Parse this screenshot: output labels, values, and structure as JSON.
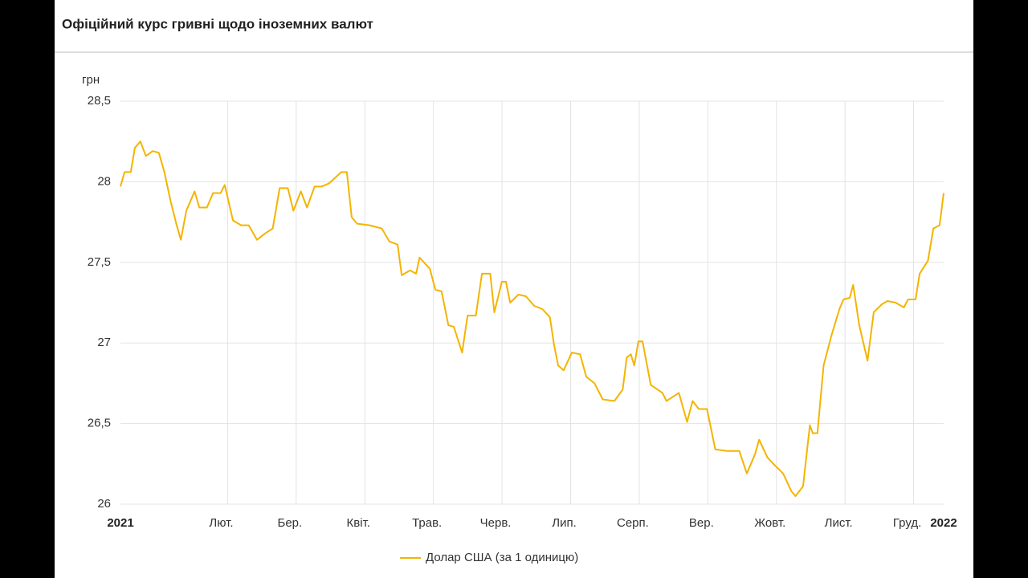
{
  "chart_data": {
    "type": "line",
    "title": "Офіційний курс гривні щодо іноземних валют",
    "y_label": "грн",
    "xlim": [
      0,
      12
    ],
    "xticks": [
      {
        "value": 0,
        "label": "2021"
      },
      {
        "value": 1,
        "label": "Лют."
      },
      {
        "value": 2,
        "label": "Бер."
      },
      {
        "value": 3,
        "label": "Квіт."
      },
      {
        "value": 4,
        "label": "Трав."
      },
      {
        "value": 5,
        "label": "Черв."
      },
      {
        "value": 6,
        "label": "Лип."
      },
      {
        "value": 7,
        "label": "Серп."
      },
      {
        "value": 8,
        "label": "Вер."
      },
      {
        "value": 9,
        "label": "Жовт."
      },
      {
        "value": 10,
        "label": "Лист."
      },
      {
        "value": 11,
        "label": "Груд."
      },
      {
        "value": 12,
        "label": "2022"
      }
    ],
    "ylim": [
      26,
      28.5
    ],
    "yticks": [
      26,
      {
        "value": 26.5,
        "label": "26,5"
      },
      27,
      {
        "value": 27.5,
        "label": "27,5"
      },
      28,
      {
        "value": 28.5,
        "label": "28,5"
      }
    ],
    "grid": true,
    "x": [
      0,
      0.06,
      0.15,
      0.21,
      0.29,
      0.37,
      0.47,
      0.56,
      0.64,
      0.73,
      0.82,
      0.88,
      0.96,
      1.08,
      1.15,
      1.26,
      1.35,
      1.46,
      1.52,
      1.64,
      1.76,
      1.87,
      1.99,
      2.11,
      2.22,
      2.32,
      2.44,
      2.52,
      2.63,
      2.72,
      2.83,
      2.93,
      3.04,
      3.22,
      3.3,
      3.37,
      3.45,
      3.63,
      3.81,
      3.92,
      4.04,
      4.1,
      4.22,
      4.31,
      4.36,
      4.51,
      4.59,
      4.68,
      4.78,
      4.86,
      4.98,
      5.06,
      5.18,
      5.27,
      5.39,
      5.45,
      5.56,
      5.62,
      5.68,
      5.8,
      5.91,
      6.03,
      6.15,
      6.26,
      6.32,
      6.38,
      6.46,
      6.58,
      6.7,
      6.79,
      6.91,
      7.03,
      7.2,
      7.32,
      7.38,
      7.44,
      7.49,
      7.55,
      7.61,
      7.73,
      7.9,
      7.96,
      8.14,
      8.26,
      8.34,
      8.43,
      8.55,
      8.67,
      8.84,
      9.02,
      9.13,
      9.25,
      9.31,
      9.43,
      9.54,
      9.66,
      9.78,
      9.84,
      9.95,
      10.05,
      10.09,
      10.16,
      10.25,
      10.36,
      10.48,
      10.54,
      10.63,
      10.68,
      10.77,
      10.89,
      10.98,
      11.1,
      11.18,
      11.3,
      11.42,
      11.48,
      11.59,
      11.65,
      11.77,
      11.85,
      11.94,
      12.0
    ],
    "series": [
      {
        "name": "Долар США (за 1 одиницю)",
        "color": "#f4b400",
        "values": [
          27.97,
          28.06,
          28.06,
          28.21,
          28.25,
          28.16,
          28.19,
          28.18,
          28.06,
          27.88,
          27.73,
          27.64,
          27.82,
          27.94,
          27.84,
          27.84,
          27.93,
          27.93,
          27.98,
          27.76,
          27.73,
          27.73,
          27.64,
          27.68,
          27.71,
          27.96,
          27.96,
          27.82,
          27.94,
          27.84,
          27.97,
          27.97,
          27.99,
          28.06,
          28.06,
          27.78,
          27.74,
          27.73,
          27.71,
          27.63,
          27.61,
          27.42,
          27.45,
          27.43,
          27.53,
          27.46,
          27.33,
          27.32,
          27.11,
          27.1,
          26.94,
          27.17,
          27.17,
          27.43,
          27.43,
          27.19,
          27.38,
          27.38,
          27.25,
          27.3,
          27.29,
          27.23,
          27.21,
          27.16,
          26.99,
          26.86,
          26.83,
          26.94,
          26.93,
          26.79,
          26.75,
          26.65,
          26.64,
          26.71,
          26.91,
          26.93,
          26.86,
          27.01,
          27.01,
          26.74,
          26.69,
          26.64,
          26.69,
          26.51,
          26.64,
          26.59,
          26.59,
          26.34,
          26.33,
          26.33,
          26.19,
          26.31,
          26.4,
          26.29,
          26.24,
          26.19,
          26.08,
          26.05,
          26.11,
          26.49,
          26.44,
          26.44,
          26.86,
          27.04,
          27.21,
          27.27,
          27.28,
          27.36,
          27.11,
          26.89,
          27.19,
          27.24,
          27.26,
          27.25,
          27.22,
          27.27,
          27.27,
          27.43,
          27.51,
          27.71,
          27.73,
          27.93
        ]
      }
    ]
  }
}
